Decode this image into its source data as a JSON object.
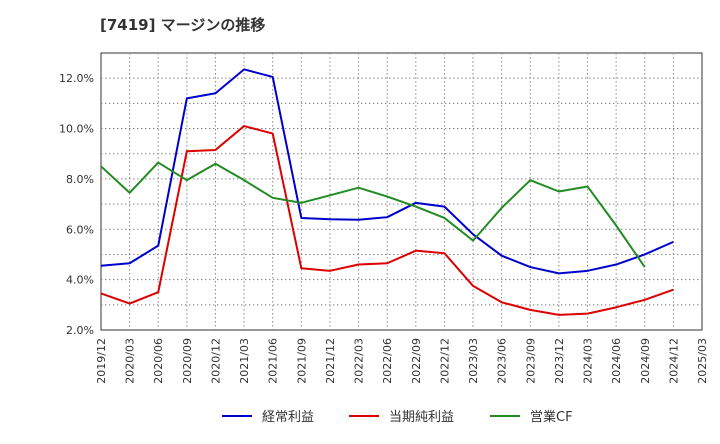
{
  "title": "[7419]  マージンの推移",
  "chart_data": {
    "type": "line",
    "title": "[7419]  マージンの推移",
    "x": [
      "2019/12",
      "2020/03",
      "2020/06",
      "2020/09",
      "2020/12",
      "2021/03",
      "2021/06",
      "2021/09",
      "2021/12",
      "2022/03",
      "2022/06",
      "2022/09",
      "2022/12",
      "2023/03",
      "2023/06",
      "2023/09",
      "2023/12",
      "2024/03",
      "2024/06",
      "2024/09",
      "2024/12",
      "2025/03"
    ],
    "ylim": [
      2.0,
      13.0
    ],
    "yticks": [
      2.0,
      4.0,
      6.0,
      8.0,
      10.0,
      12.0
    ],
    "ytick_labels": [
      "2.0%",
      "4.0%",
      "6.0%",
      "8.0%",
      "10.0%",
      "12.0%"
    ],
    "grid": true,
    "legend_position": "bottom",
    "series": [
      {
        "name": "経常利益",
        "color": "#0000cc",
        "values": [
          4.55,
          4.65,
          5.35,
          11.2,
          11.4,
          12.35,
          12.05,
          6.45,
          6.4,
          6.38,
          6.48,
          7.05,
          6.9,
          5.8,
          4.95,
          4.5,
          4.25,
          4.35,
          4.6,
          5.0,
          5.5,
          null
        ]
      },
      {
        "name": "当期純利益",
        "color": "#dd0000",
        "values": [
          3.45,
          3.05,
          3.5,
          9.1,
          9.15,
          10.1,
          9.8,
          4.45,
          4.35,
          4.6,
          4.65,
          5.15,
          5.05,
          3.75,
          3.1,
          2.8,
          2.6,
          2.65,
          2.9,
          3.2,
          3.6,
          null
        ]
      },
      {
        "name": "営業CF",
        "color": "#228b22",
        "values": [
          8.5,
          7.45,
          8.65,
          7.95,
          8.6,
          7.95,
          7.25,
          7.05,
          7.35,
          7.65,
          7.3,
          6.9,
          6.45,
          5.55,
          6.85,
          7.95,
          7.5,
          7.7,
          6.15,
          4.5,
          null,
          null
        ]
      }
    ]
  }
}
